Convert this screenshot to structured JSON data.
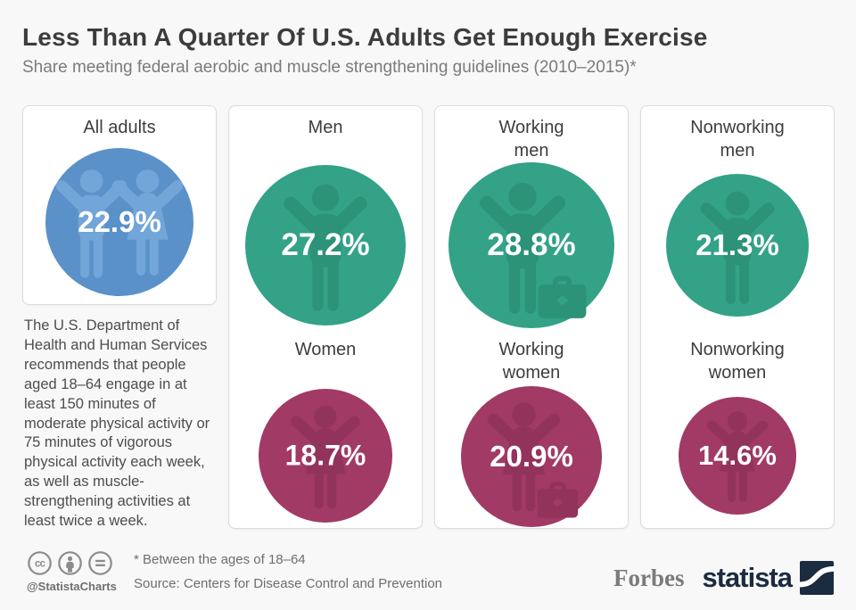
{
  "header": {
    "title": "Less Than A Quarter Of U.S. Adults Get Enough Exercise",
    "subtitle": "Share meeting federal aerobic and muscle strengthening guidelines (2010–2015)*"
  },
  "panels": {
    "all_adults": {
      "label1": "All adults",
      "label2": "",
      "value": "22.9%",
      "pct": 22.9,
      "circle_color": "#5b91c9",
      "icon_color": "#72a5d8",
      "icon": "man-and-woman"
    },
    "men": {
      "label1": "Men",
      "label2": "",
      "value": "27.2%",
      "pct": 27.2,
      "circle_color": "#33a287",
      "icon_color": "#2c9278",
      "icon": "man"
    },
    "women": {
      "label1": "Women",
      "label2": "",
      "value": "18.7%",
      "pct": 18.7,
      "circle_color": "#a13a64",
      "icon_color": "#92335b",
      "icon": "woman"
    },
    "working_men": {
      "label1": "Working",
      "label2": "men",
      "value": "28.8%",
      "pct": 28.8,
      "circle_color": "#33a287",
      "icon_color": "#2c9278",
      "icon": "man-with-briefcase"
    },
    "working_women": {
      "label1": "Working",
      "label2": "women",
      "value": "20.9%",
      "pct": 20.9,
      "circle_color": "#a13a64",
      "icon_color": "#92335b",
      "icon": "woman-with-briefcase"
    },
    "nonworking_men": {
      "label1": "Nonworking",
      "label2": "men",
      "value": "21.3%",
      "pct": 21.3,
      "circle_color": "#33a287",
      "icon_color": "#2c9278",
      "icon": "man"
    },
    "nonworking_women": {
      "label1": "Nonworking",
      "label2": "women",
      "value": "14.6%",
      "pct": 14.6,
      "circle_color": "#a13a64",
      "icon_color": "#92335b",
      "icon": "woman"
    }
  },
  "note": "The U.S. Department of Health and Human Services recommends that people aged 18–64 engage in at least 150 minutes of moderate physical activity or 75 minutes of vigorous physical activity each week, as well as muscle-strengthening activities at least twice a week.",
  "footer": {
    "handle": "@StatistaCharts",
    "footnote": "* Between the ages of 18–64",
    "source": "Source: Centers for Disease Control and Prevention",
    "forbes": "Forbes",
    "statista": "statista",
    "license_icons": [
      "cc-icon",
      "cc-attribution-icon",
      "cc-nd-icon"
    ]
  },
  "chart_data": {
    "type": "pictorial-bubble",
    "title": "Less Than A Quarter Of U.S. Adults Get Enough Exercise",
    "subtitle": "Share meeting federal aerobic and muscle strengthening guidelines (2010–2015)*",
    "unit": "%",
    "categories": [
      "All adults",
      "Men",
      "Women",
      "Working men",
      "Working women",
      "Nonworking men",
      "Nonworking women"
    ],
    "values": [
      22.9,
      27.2,
      18.7,
      28.8,
      20.9,
      21.3,
      14.6
    ],
    "colors": {
      "all_adults": "#5b91c9",
      "men": "#33a287",
      "women": "#a13a64"
    },
    "layout": "bubble area proportional to value; four columns: All adults | Men/Women | Working men/women | Nonworking men/women"
  }
}
